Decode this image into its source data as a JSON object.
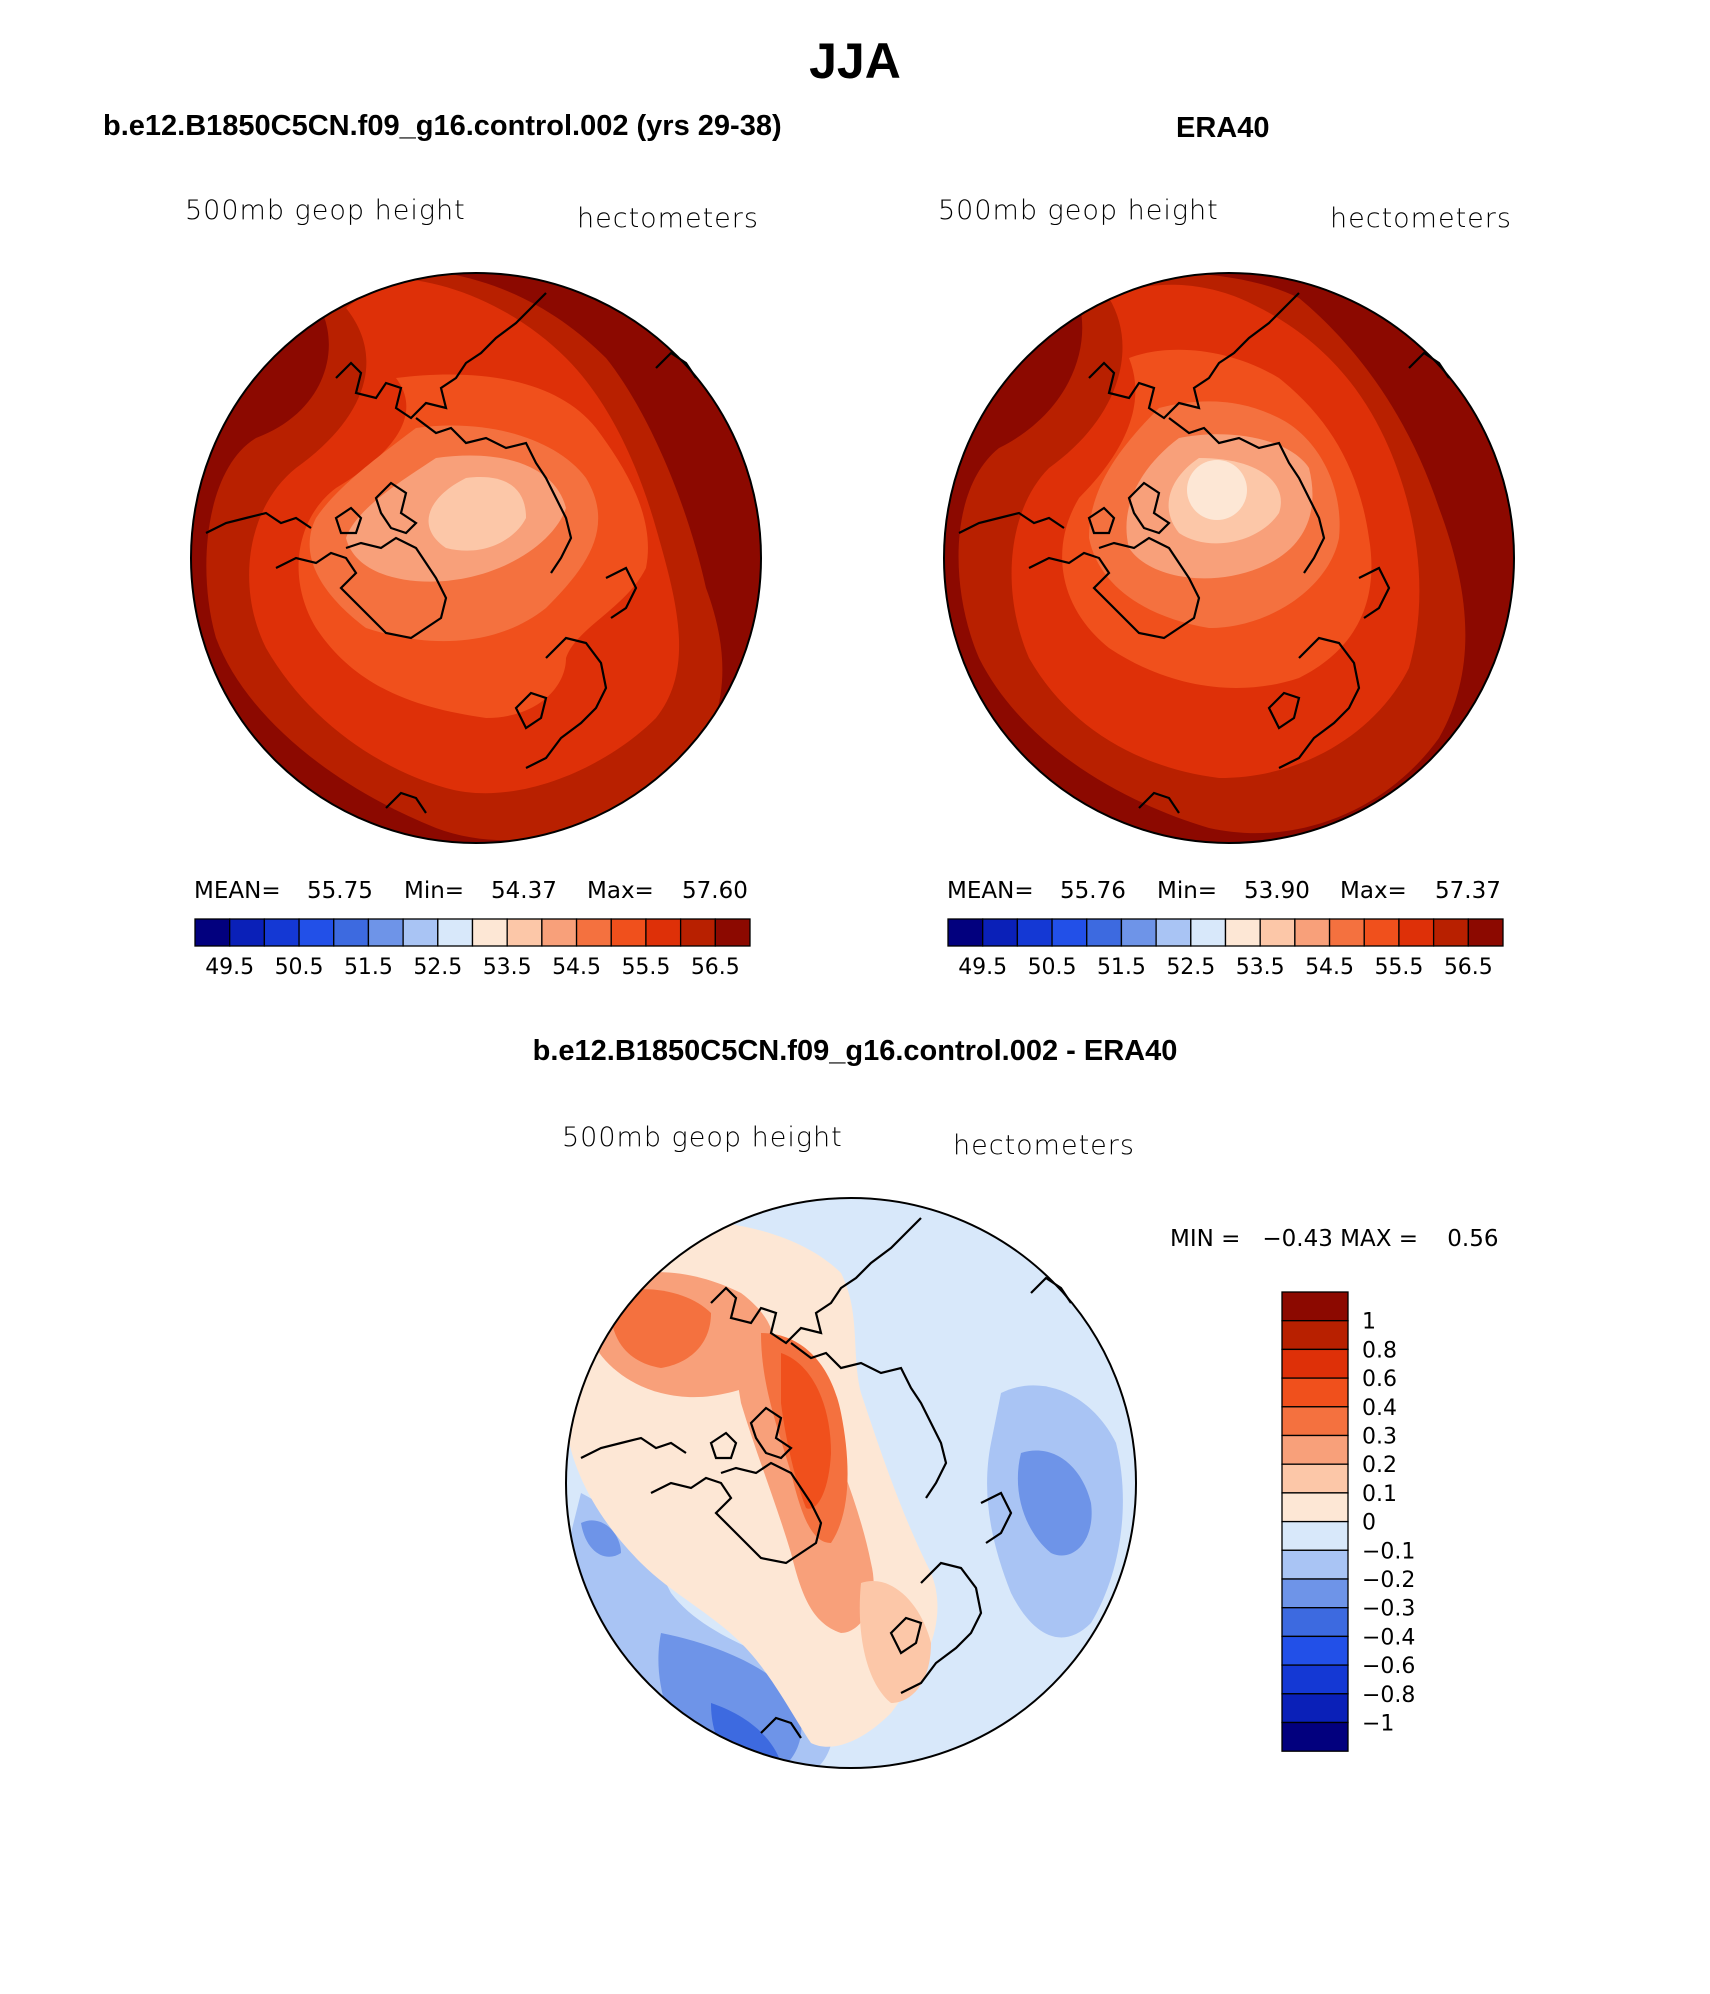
{
  "header": {
    "title": "JJA"
  },
  "panels": {
    "model": {
      "title": "b.e12.B1850C5CN.f09_g16.control.002 (yrs 29-38)",
      "variable": "500mb geop height",
      "units": "hectometers",
      "stats": {
        "mean_label": "MEAN=",
        "mean": "55.75",
        "min_label": "Min=",
        "min": "54.37",
        "max_label": "Max=",
        "max": "57.60"
      }
    },
    "obs": {
      "title": "ERA40",
      "variable": "500mb geop height",
      "units": "hectometers",
      "stats": {
        "mean_label": "MEAN=",
        "mean": "55.76",
        "min_label": "Min=",
        "min": "53.90",
        "max_label": "Max=",
        "max": "57.37"
      }
    },
    "diff": {
      "title": "b.e12.B1850C5CN.f09_g16.control.002 - ERA40",
      "variable": "500mb geop height",
      "units": "hectometers",
      "stats_text": "MIN =   −0.43 MAX =    0.56"
    }
  },
  "chart_data": [
    {
      "type": "heatmap",
      "projection": "north polar stereographic",
      "title": "b.e12.B1850C5CN.f09_g16.control.002 (yrs 29-38)",
      "variable": "500mb geop height",
      "units": "hectometers",
      "mean": 55.75,
      "min": 54.37,
      "max": 57.6,
      "colorbar": {
        "orientation": "horizontal",
        "tick_labels": [
          "49.5",
          "50.5",
          "51.5",
          "52.5",
          "53.5",
          "54.5",
          "55.5",
          "56.5"
        ],
        "colors": [
          "#02007e",
          "#0a20b8",
          "#1438d4",
          "#2250e8",
          "#3d6ae0",
          "#6e94e8",
          "#a9c4f4",
          "#d8e8fa",
          "#fde7d5",
          "#fcc7a8",
          "#f8a07a",
          "#f4713f",
          "#f0501c",
          "#de3008",
          "#b82000",
          "#8c0900"
        ]
      }
    },
    {
      "type": "heatmap",
      "projection": "north polar stereographic",
      "title": "ERA40",
      "variable": "500mb geop height",
      "units": "hectometers",
      "mean": 55.76,
      "min": 53.9,
      "max": 57.37,
      "colorbar": {
        "orientation": "horizontal",
        "tick_labels": [
          "49.5",
          "50.5",
          "51.5",
          "52.5",
          "53.5",
          "54.5",
          "55.5",
          "56.5"
        ],
        "colors": [
          "#02007e",
          "#0a20b8",
          "#1438d4",
          "#2250e8",
          "#3d6ae0",
          "#6e94e8",
          "#a9c4f4",
          "#d8e8fa",
          "#fde7d5",
          "#fcc7a8",
          "#f8a07a",
          "#f4713f",
          "#f0501c",
          "#de3008",
          "#b82000",
          "#8c0900"
        ]
      }
    },
    {
      "type": "heatmap",
      "projection": "north polar stereographic",
      "title": "b.e12.B1850C5CN.f09_g16.control.002 - ERA40",
      "variable": "500mb geop height",
      "units": "hectometers",
      "min": -0.43,
      "max": 0.56,
      "colorbar": {
        "orientation": "vertical",
        "tick_labels": [
          "1",
          "0.8",
          "0.6",
          "0.4",
          "0.3",
          "0.2",
          "0.1",
          "0",
          "−0.1",
          "−0.2",
          "−0.3",
          "−0.4",
          "−0.6",
          "−0.8",
          "−1"
        ],
        "colors": [
          "#8c0900",
          "#b82000",
          "#de3008",
          "#f0501c",
          "#f4713f",
          "#f8a07a",
          "#fcc7a8",
          "#fde7d5",
          "#d8e8fa",
          "#a9c4f4",
          "#6e94e8",
          "#3d6ae0",
          "#2250e8",
          "#1438d4",
          "#0a20b8",
          "#02007e"
        ]
      }
    }
  ]
}
